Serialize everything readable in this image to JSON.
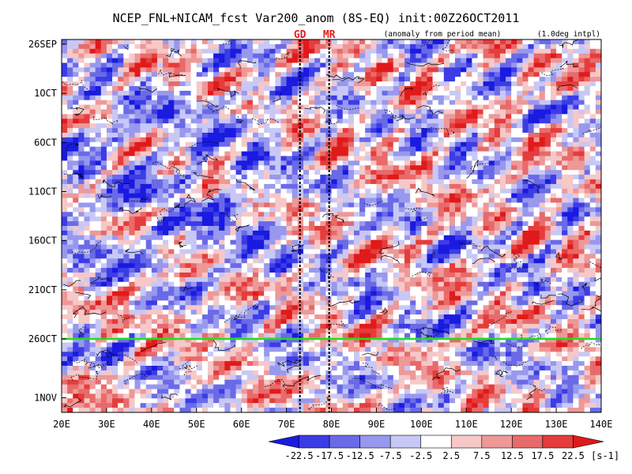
{
  "chart_data": {
    "type": "heatmap",
    "title": "NCEP_FNL+NICAM_fcst Var200_anom (8S-EQ) init:00Z26OCT2011",
    "subtitle_left": "(anomaly from period mean)",
    "subtitle_right": "(1.0deg intpl)",
    "x_axis": {
      "range": [
        20,
        140
      ],
      "unit": "longitude (E)",
      "ticks": [
        {
          "value": 20,
          "label": "20E"
        },
        {
          "value": 30,
          "label": "30E"
        },
        {
          "value": 40,
          "label": "40E"
        },
        {
          "value": 50,
          "label": "50E"
        },
        {
          "value": 60,
          "label": "60E"
        },
        {
          "value": 70,
          "label": "70E"
        },
        {
          "value": 80,
          "label": "80E"
        },
        {
          "value": 90,
          "label": "90E"
        },
        {
          "value": 100,
          "label": "100E"
        },
        {
          "value": 110,
          "label": "110E"
        },
        {
          "value": 120,
          "label": "120E"
        },
        {
          "value": 130,
          "label": "130E"
        },
        {
          "value": 140,
          "label": "140E"
        }
      ]
    },
    "y_axis": {
      "range": [
        "2011-09-26",
        "2011-11-02"
      ],
      "direction": "time increases downward",
      "ticks": [
        {
          "date": "2011-09-26",
          "label": "26SEP"
        },
        {
          "date": "2011-10-01",
          "label": "1OCT"
        },
        {
          "date": "2011-10-06",
          "label": "6OCT"
        },
        {
          "date": "2011-10-11",
          "label": "11OCT"
        },
        {
          "date": "2011-10-16",
          "label": "16OCT"
        },
        {
          "date": "2011-10-21",
          "label": "21OCT"
        },
        {
          "date": "2011-10-26",
          "label": "26OCT"
        },
        {
          "date": "2011-11-01",
          "label": "1NOV"
        }
      ]
    },
    "init_line": {
      "date": "2011-10-26",
      "color": "#22dd22",
      "label": "26OCT"
    },
    "station_markers": [
      {
        "label": "GD",
        "lon": 73
      },
      {
        "label": "MR",
        "lon": 79.5
      }
    ],
    "colorbar": {
      "unit": "[s-1]",
      "levels": [
        "-22.5",
        "-17.5",
        "-12.5",
        "-7.5",
        "-2.5",
        "2.5",
        "7.5",
        "12.5",
        "17.5",
        "22.5"
      ],
      "colors": [
        "#1a1ae0",
        "#3c3ce6",
        "#6a6ae8",
        "#9898ee",
        "#c8c8f6",
        "#ffffff",
        "#f6c8c8",
        "#ee9898",
        "#e86a6a",
        "#e63c3c",
        "#e01a1a"
      ]
    },
    "field_description": "noisy anomaly pattern with eastward-propagating positive (red) bands; contour lines overlay"
  }
}
